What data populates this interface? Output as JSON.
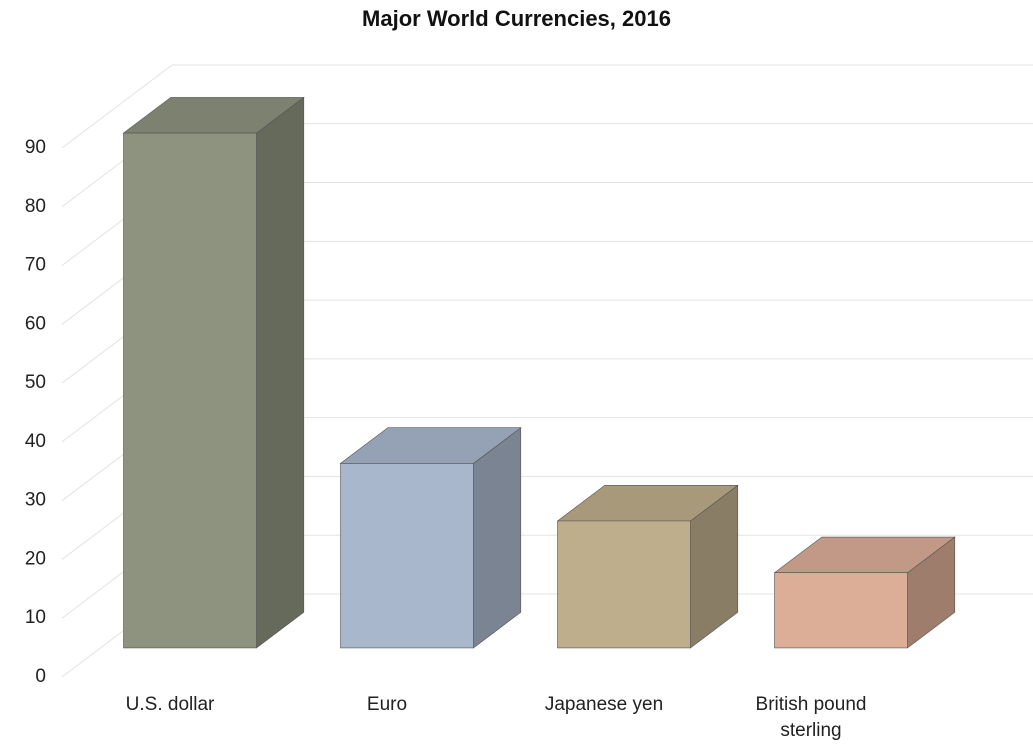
{
  "chart_data": {
    "type": "bar3d",
    "title": "Major World Currencies, 2016",
    "categories": [
      "U.S. dollar",
      "Euro",
      "Japanese yen",
      "British pound sterling"
    ],
    "values": [
      87.6,
      31.4,
      21.6,
      12.8
    ],
    "colors": [
      "#8e937f",
      "#a9b7cc",
      "#bfae8c",
      "#dcae98"
    ],
    "ylim": [
      0,
      90
    ],
    "yticks": [
      0,
      10,
      20,
      30,
      40,
      50,
      60,
      70,
      80,
      90
    ],
    "grid": true
  }
}
